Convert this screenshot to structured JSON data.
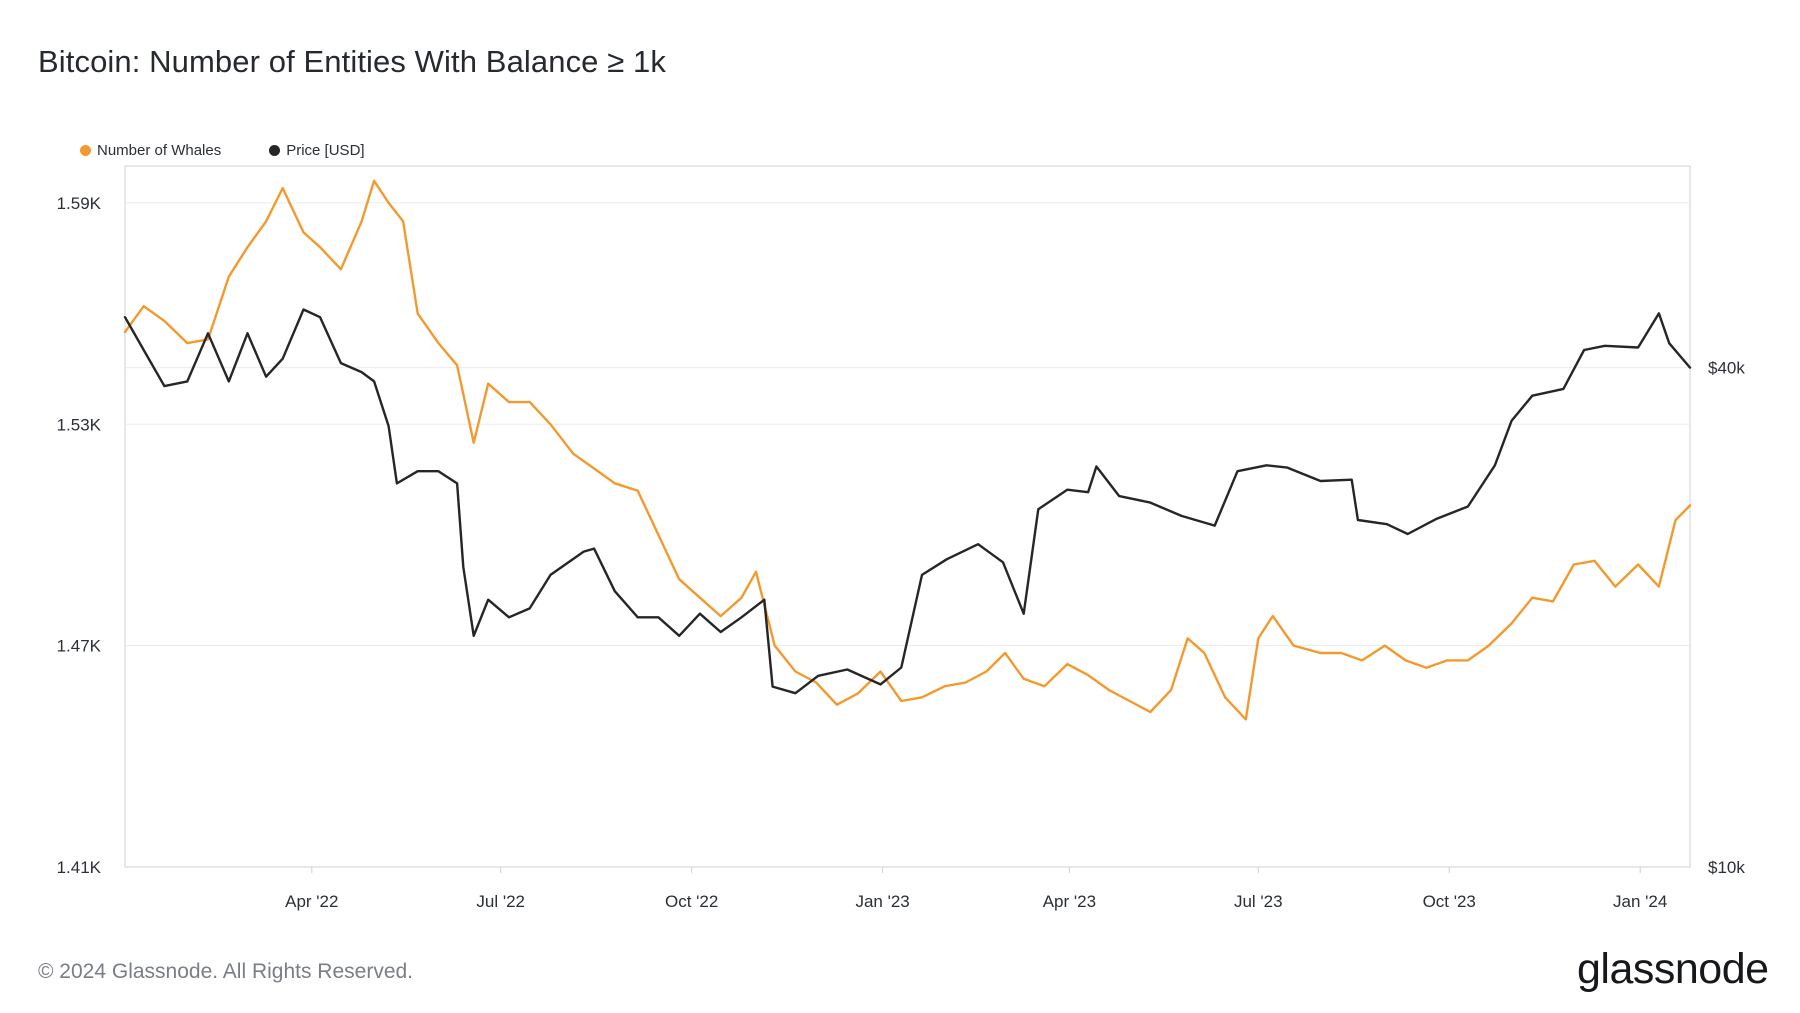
{
  "title": "Bitcoin: Number of Entities With Balance ≥ 1k",
  "footer": "© 2024 Glassnode. All Rights Reserved.",
  "brand": "glassnode",
  "colors": {
    "whales": "#f29a2e",
    "price": "#262626",
    "grid": "#ececec",
    "axis": "#d0d0d0"
  },
  "chart_data": {
    "type": "line",
    "legend_position": "top-left",
    "grid": true,
    "x_ticks": [
      "Apr '22",
      "Jul '22",
      "Oct '22",
      "Jan '23",
      "Apr '23",
      "Jul '23",
      "Oct '23",
      "Jan '24"
    ],
    "y_left": {
      "ticks": [
        "1.59K",
        "1.53K",
        "1.47K",
        "1.41K"
      ],
      "range": [
        1.41,
        1.6
      ]
    },
    "y_right": {
      "ticks": [
        "$40k",
        "$10k"
      ],
      "scale": "log",
      "range": [
        10000,
        70000
      ]
    },
    "x_range": [
      "2022-01-01",
      "2024-01-25"
    ],
    "series": [
      {
        "name": "Number of Whales",
        "axis": "left",
        "unit": "K",
        "points": [
          [
            "2022-01-01",
            1.555
          ],
          [
            "2022-01-10",
            1.562
          ],
          [
            "2022-01-20",
            1.558
          ],
          [
            "2022-01-31",
            1.552
          ],
          [
            "2022-02-10",
            1.553
          ],
          [
            "2022-02-20",
            1.57
          ],
          [
            "2022-03-01",
            1.578
          ],
          [
            "2022-03-10",
            1.585
          ],
          [
            "2022-03-18",
            1.594
          ],
          [
            "2022-03-28",
            1.582
          ],
          [
            "2022-04-05",
            1.578
          ],
          [
            "2022-04-15",
            1.572
          ],
          [
            "2022-04-25",
            1.585
          ],
          [
            "2022-05-01",
            1.596
          ],
          [
            "2022-05-08",
            1.59
          ],
          [
            "2022-05-15",
            1.585
          ],
          [
            "2022-05-22",
            1.56
          ],
          [
            "2022-06-01",
            1.552
          ],
          [
            "2022-06-10",
            1.546
          ],
          [
            "2022-06-18",
            1.525
          ],
          [
            "2022-06-25",
            1.541
          ],
          [
            "2022-07-05",
            1.536
          ],
          [
            "2022-07-15",
            1.536
          ],
          [
            "2022-07-25",
            1.53
          ],
          [
            "2022-08-05",
            1.522
          ],
          [
            "2022-08-15",
            1.518
          ],
          [
            "2022-08-25",
            1.514
          ],
          [
            "2022-09-05",
            1.512
          ],
          [
            "2022-09-15",
            1.5
          ],
          [
            "2022-09-25",
            1.488
          ],
          [
            "2022-10-05",
            1.483
          ],
          [
            "2022-10-15",
            1.478
          ],
          [
            "2022-10-25",
            1.483
          ],
          [
            "2022-11-01",
            1.49
          ],
          [
            "2022-11-10",
            1.47
          ],
          [
            "2022-11-20",
            1.463
          ],
          [
            "2022-11-30",
            1.46
          ],
          [
            "2022-12-10",
            1.454
          ],
          [
            "2022-12-20",
            1.457
          ],
          [
            "2022-12-31",
            1.463
          ],
          [
            "2023-01-10",
            1.455
          ],
          [
            "2023-01-20",
            1.456
          ],
          [
            "2023-01-31",
            1.459
          ],
          [
            "2023-02-10",
            1.46
          ],
          [
            "2023-02-20",
            1.463
          ],
          [
            "2023-03-01",
            1.468
          ],
          [
            "2023-03-10",
            1.461
          ],
          [
            "2023-03-20",
            1.459
          ],
          [
            "2023-03-31",
            1.465
          ],
          [
            "2023-04-10",
            1.462
          ],
          [
            "2023-04-20",
            1.458
          ],
          [
            "2023-04-30",
            1.455
          ],
          [
            "2023-05-10",
            1.452
          ],
          [
            "2023-05-20",
            1.458
          ],
          [
            "2023-05-28",
            1.472
          ],
          [
            "2023-06-05",
            1.468
          ],
          [
            "2023-06-15",
            1.456
          ],
          [
            "2023-06-25",
            1.45
          ],
          [
            "2023-07-01",
            1.472
          ],
          [
            "2023-07-08",
            1.478
          ],
          [
            "2023-07-18",
            1.47
          ],
          [
            "2023-07-31",
            1.468
          ],
          [
            "2023-08-10",
            1.468
          ],
          [
            "2023-08-20",
            1.466
          ],
          [
            "2023-08-31",
            1.47
          ],
          [
            "2023-09-10",
            1.466
          ],
          [
            "2023-09-20",
            1.464
          ],
          [
            "2023-09-30",
            1.466
          ],
          [
            "2023-10-10",
            1.466
          ],
          [
            "2023-10-20",
            1.47
          ],
          [
            "2023-10-31",
            1.476
          ],
          [
            "2023-11-10",
            1.483
          ],
          [
            "2023-11-20",
            1.482
          ],
          [
            "2023-11-30",
            1.492
          ],
          [
            "2023-12-10",
            1.493
          ],
          [
            "2023-12-20",
            1.486
          ],
          [
            "2023-12-31",
            1.492
          ],
          [
            "2024-01-10",
            1.486
          ],
          [
            "2024-01-18",
            1.504
          ],
          [
            "2024-01-25",
            1.508
          ]
        ]
      },
      {
        "name": "Price [USD]",
        "axis": "right",
        "unit": "USD",
        "points": [
          [
            "2022-01-01",
            46000
          ],
          [
            "2022-01-10",
            42000
          ],
          [
            "2022-01-20",
            38000
          ],
          [
            "2022-01-31",
            38500
          ],
          [
            "2022-02-10",
            44000
          ],
          [
            "2022-02-20",
            38500
          ],
          [
            "2022-03-01",
            44000
          ],
          [
            "2022-03-10",
            39000
          ],
          [
            "2022-03-18",
            41000
          ],
          [
            "2022-03-28",
            47000
          ],
          [
            "2022-04-05",
            46000
          ],
          [
            "2022-04-15",
            40500
          ],
          [
            "2022-04-25",
            39500
          ],
          [
            "2022-05-01",
            38500
          ],
          [
            "2022-05-08",
            34000
          ],
          [
            "2022-05-12",
            29000
          ],
          [
            "2022-05-22",
            30000
          ],
          [
            "2022-06-01",
            30000
          ],
          [
            "2022-06-10",
            29000
          ],
          [
            "2022-06-13",
            23000
          ],
          [
            "2022-06-18",
            19000
          ],
          [
            "2022-06-25",
            21000
          ],
          [
            "2022-07-05",
            20000
          ],
          [
            "2022-07-15",
            20500
          ],
          [
            "2022-07-25",
            22500
          ],
          [
            "2022-08-10",
            24000
          ],
          [
            "2022-08-15",
            24200
          ],
          [
            "2022-08-25",
            21500
          ],
          [
            "2022-09-05",
            20000
          ],
          [
            "2022-09-15",
            20000
          ],
          [
            "2022-09-25",
            19000
          ],
          [
            "2022-10-05",
            20200
          ],
          [
            "2022-10-15",
            19200
          ],
          [
            "2022-10-25",
            20000
          ],
          [
            "2022-11-05",
            21000
          ],
          [
            "2022-11-09",
            16500
          ],
          [
            "2022-11-20",
            16200
          ],
          [
            "2022-12-01",
            17000
          ],
          [
            "2022-12-15",
            17300
          ],
          [
            "2022-12-31",
            16600
          ],
          [
            "2023-01-10",
            17400
          ],
          [
            "2023-01-20",
            22500
          ],
          [
            "2023-02-01",
            23500
          ],
          [
            "2023-02-16",
            24500
          ],
          [
            "2023-02-28",
            23300
          ],
          [
            "2023-03-10",
            20200
          ],
          [
            "2023-03-17",
            27000
          ],
          [
            "2023-03-31",
            28500
          ],
          [
            "2023-04-10",
            28300
          ],
          [
            "2023-04-14",
            30400
          ],
          [
            "2023-04-25",
            28000
          ],
          [
            "2023-05-10",
            27500
          ],
          [
            "2023-05-25",
            26500
          ],
          [
            "2023-06-10",
            25800
          ],
          [
            "2023-06-21",
            30000
          ],
          [
            "2023-07-05",
            30500
          ],
          [
            "2023-07-15",
            30300
          ],
          [
            "2023-07-31",
            29200
          ],
          [
            "2023-08-15",
            29300
          ],
          [
            "2023-08-18",
            26200
          ],
          [
            "2023-09-01",
            25900
          ],
          [
            "2023-09-11",
            25200
          ],
          [
            "2023-09-25",
            26300
          ],
          [
            "2023-10-10",
            27200
          ],
          [
            "2023-10-23",
            30500
          ],
          [
            "2023-10-31",
            34500
          ],
          [
            "2023-11-10",
            37000
          ],
          [
            "2023-11-25",
            37700
          ],
          [
            "2023-12-05",
            42000
          ],
          [
            "2023-12-15",
            42500
          ],
          [
            "2023-12-31",
            42300
          ],
          [
            "2024-01-10",
            46500
          ],
          [
            "2024-01-15",
            42800
          ],
          [
            "2024-01-25",
            40000
          ]
        ]
      }
    ]
  }
}
